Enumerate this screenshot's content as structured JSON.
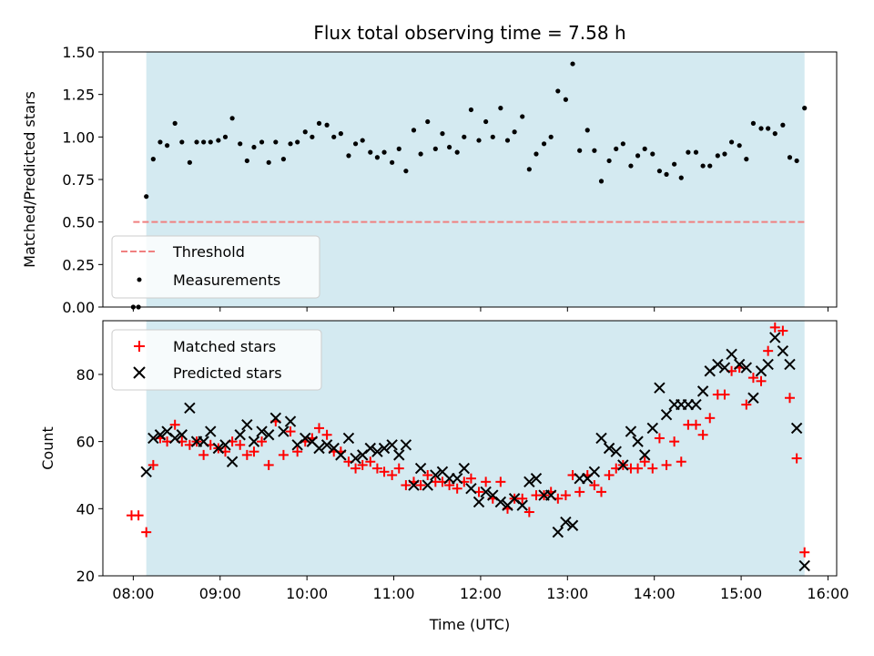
{
  "chart_data": [
    {
      "type": "scatter",
      "title": "Flux total observing time = 7.58 h",
      "xlabel": "",
      "ylabel": "Matched/Predicted stars",
      "ylim": [
        0.0,
        1.5
      ],
      "yticks": [
        "0.00",
        "0.25",
        "0.50",
        "0.75",
        "1.00",
        "1.25",
        "1.50"
      ],
      "ytick_values": [
        0.0,
        0.25,
        0.5,
        0.75,
        1.0,
        1.25,
        1.5
      ],
      "observing_window_hours": [
        8.15,
        15.73
      ],
      "threshold": 0.5,
      "legend": {
        "placement": "lower-left",
        "threshold_label": "Threshold",
        "measurements_label": "Measurements"
      },
      "colors": {
        "window": "#d4eaf1",
        "threshold": "#f08080",
        "points": "#000000"
      },
      "series": [
        {
          "name": "Measurements",
          "x": [
            8.0,
            8.06,
            8.15,
            8.23,
            8.31,
            8.39,
            8.48,
            8.56,
            8.65,
            8.73,
            8.81,
            8.89,
            8.98,
            9.06,
            9.14,
            9.23,
            9.31,
            9.39,
            9.48,
            9.56,
            9.64,
            9.73,
            9.81,
            9.89,
            9.98,
            10.06,
            10.14,
            10.23,
            10.31,
            10.39,
            10.48,
            10.56,
            10.64,
            10.73,
            10.81,
            10.89,
            10.98,
            11.06,
            11.14,
            11.23,
            11.31,
            11.39,
            11.48,
            11.56,
            11.64,
            11.73,
            11.81,
            11.89,
            11.98,
            12.06,
            12.14,
            12.23,
            12.31,
            12.39,
            12.48,
            12.56,
            12.64,
            12.73,
            12.81,
            12.89,
            12.98,
            13.06,
            13.14,
            13.23,
            13.31,
            13.39,
            13.48,
            13.56,
            13.64,
            13.73,
            13.81,
            13.89,
            13.98,
            14.06,
            14.14,
            14.23,
            14.31,
            14.39,
            14.48,
            14.56,
            14.64,
            14.73,
            14.81,
            14.89,
            14.98,
            15.06,
            15.14,
            15.23,
            15.31,
            15.39,
            15.48,
            15.56,
            15.64,
            15.73
          ],
          "y": [
            0.0,
            0.0,
            0.65,
            0.87,
            0.97,
            0.95,
            1.08,
            0.97,
            0.85,
            0.97,
            0.97,
            0.97,
            0.98,
            1.0,
            1.11,
            0.96,
            0.86,
            0.94,
            0.97,
            0.85,
            0.97,
            0.87,
            0.96,
            0.97,
            1.03,
            1.0,
            1.08,
            1.07,
            1.0,
            1.02,
            0.89,
            0.96,
            0.98,
            0.91,
            0.88,
            0.91,
            0.85,
            0.93,
            0.8,
            1.04,
            0.9,
            1.09,
            0.93,
            1.02,
            0.94,
            0.91,
            1.0,
            1.16,
            0.98,
            1.09,
            1.0,
            1.17,
            0.98,
            1.03,
            1.12,
            0.81,
            0.9,
            0.96,
            1.0,
            1.27,
            1.22,
            1.43,
            0.92,
            1.04,
            0.92,
            0.74,
            0.86,
            0.93,
            0.96,
            0.83,
            0.89,
            0.93,
            0.9,
            0.8,
            0.78,
            0.84,
            0.76,
            0.91,
            0.91,
            0.83,
            0.83,
            0.89,
            0.9,
            0.97,
            0.95,
            0.87,
            1.08,
            1.05,
            1.05,
            1.02,
            1.07,
            0.88,
            0.86,
            1.17
          ]
        }
      ]
    },
    {
      "type": "scatter",
      "title": "",
      "xlabel": "Time (UTC)",
      "ylabel": "Count",
      "ylim": [
        20,
        96
      ],
      "xlim": [
        7.65,
        16.1
      ],
      "xticks": [
        "08:00",
        "09:00",
        "10:00",
        "11:00",
        "12:00",
        "13:00",
        "14:00",
        "15:00",
        "16:00"
      ],
      "xtick_values": [
        8,
        9,
        10,
        11,
        12,
        13,
        14,
        15,
        16
      ],
      "yticks": [
        "20",
        "40",
        "60",
        "80"
      ],
      "ytick_values": [
        20,
        40,
        60,
        80
      ],
      "observing_window_hours": [
        8.15,
        15.73
      ],
      "legend": {
        "placement": "top-left",
        "matched_label": "Matched stars",
        "predicted_label": "Predicted stars"
      },
      "colors": {
        "window": "#d4eaf1",
        "matched": "#ff0000",
        "predicted": "#000000"
      },
      "series": [
        {
          "name": "Matched stars",
          "marker": "+",
          "x": [
            7.98,
            8.06,
            8.15,
            8.23,
            8.31,
            8.39,
            8.48,
            8.56,
            8.65,
            8.73,
            8.81,
            8.89,
            8.98,
            9.06,
            9.14,
            9.23,
            9.31,
            9.39,
            9.48,
            9.56,
            9.64,
            9.73,
            9.81,
            9.89,
            9.98,
            10.06,
            10.14,
            10.23,
            10.31,
            10.39,
            10.48,
            10.56,
            10.64,
            10.73,
            10.81,
            10.89,
            10.98,
            11.06,
            11.14,
            11.23,
            11.31,
            11.39,
            11.48,
            11.56,
            11.64,
            11.73,
            11.81,
            11.89,
            11.98,
            12.06,
            12.14,
            12.23,
            12.31,
            12.39,
            12.48,
            12.56,
            12.64,
            12.73,
            12.81,
            12.89,
            12.98,
            13.06,
            13.14,
            13.23,
            13.31,
            13.39,
            13.48,
            13.56,
            13.64,
            13.73,
            13.81,
            13.89,
            13.98,
            14.06,
            14.14,
            14.23,
            14.31,
            14.39,
            14.48,
            14.56,
            14.64,
            14.73,
            14.81,
            14.89,
            14.98,
            15.06,
            15.14,
            15.23,
            15.31,
            15.39,
            15.48,
            15.56,
            15.64,
            15.73
          ],
          "y": [
            38,
            38,
            33,
            53,
            61,
            60,
            65,
            60,
            59,
            60,
            56,
            59,
            58,
            57,
            60,
            59,
            56,
            57,
            60,
            53,
            66,
            56,
            63,
            57,
            60,
            61,
            64,
            62,
            57,
            57,
            54,
            52,
            53,
            54,
            52,
            51,
            50,
            52,
            47,
            48,
            47,
            50,
            48,
            48,
            47,
            46,
            48,
            49,
            45,
            48,
            43,
            48,
            40,
            43,
            43,
            39,
            44,
            44,
            45,
            43,
            44,
            50,
            45,
            50,
            47,
            45,
            50,
            52,
            53,
            52,
            52,
            54,
            52,
            61,
            53,
            60,
            54,
            65,
            65,
            62,
            67,
            74,
            74,
            81,
            82,
            71,
            79,
            78,
            87,
            94,
            93,
            73,
            55,
            27
          ]
        },
        {
          "name": "Predicted stars",
          "marker": "x",
          "x": [
            8.15,
            8.23,
            8.31,
            8.39,
            8.48,
            8.56,
            8.65,
            8.73,
            8.81,
            8.89,
            8.98,
            9.06,
            9.14,
            9.23,
            9.31,
            9.39,
            9.48,
            9.56,
            9.64,
            9.73,
            9.81,
            9.89,
            9.98,
            10.06,
            10.14,
            10.23,
            10.31,
            10.39,
            10.48,
            10.56,
            10.64,
            10.73,
            10.81,
            10.89,
            10.98,
            11.06,
            11.14,
            11.23,
            11.31,
            11.39,
            11.48,
            11.56,
            11.64,
            11.73,
            11.81,
            11.89,
            11.98,
            12.06,
            12.14,
            12.23,
            12.31,
            12.39,
            12.48,
            12.56,
            12.64,
            12.73,
            12.81,
            12.89,
            12.98,
            13.06,
            13.14,
            13.23,
            13.31,
            13.39,
            13.48,
            13.56,
            13.64,
            13.73,
            13.81,
            13.89,
            13.98,
            14.06,
            14.14,
            14.23,
            14.31,
            14.39,
            14.48,
            14.56,
            14.64,
            14.73,
            14.81,
            14.89,
            14.98,
            15.06,
            15.14,
            15.23,
            15.31,
            15.39,
            15.48,
            15.56,
            15.64,
            15.73
          ],
          "y": [
            51,
            61,
            62,
            63,
            61,
            62,
            70,
            60,
            60,
            63,
            58,
            59,
            54,
            62,
            65,
            60,
            63,
            62,
            67,
            63,
            66,
            59,
            61,
            60,
            58,
            59,
            58,
            56,
            61,
            55,
            56,
            58,
            57,
            58,
            59,
            56,
            59,
            47,
            52,
            47,
            50,
            51,
            49,
            49,
            52,
            46,
            42,
            45,
            44,
            42,
            41,
            43,
            41,
            48,
            49,
            44,
            44,
            33,
            36,
            35,
            49,
            49,
            51,
            61,
            58,
            57,
            53,
            63,
            60,
            56,
            64,
            76,
            68,
            71,
            71,
            71,
            71,
            75,
            81,
            83,
            82,
            86,
            83,
            82,
            73,
            81,
            83,
            91,
            87,
            83,
            64,
            23
          ]
        }
      ]
    }
  ]
}
